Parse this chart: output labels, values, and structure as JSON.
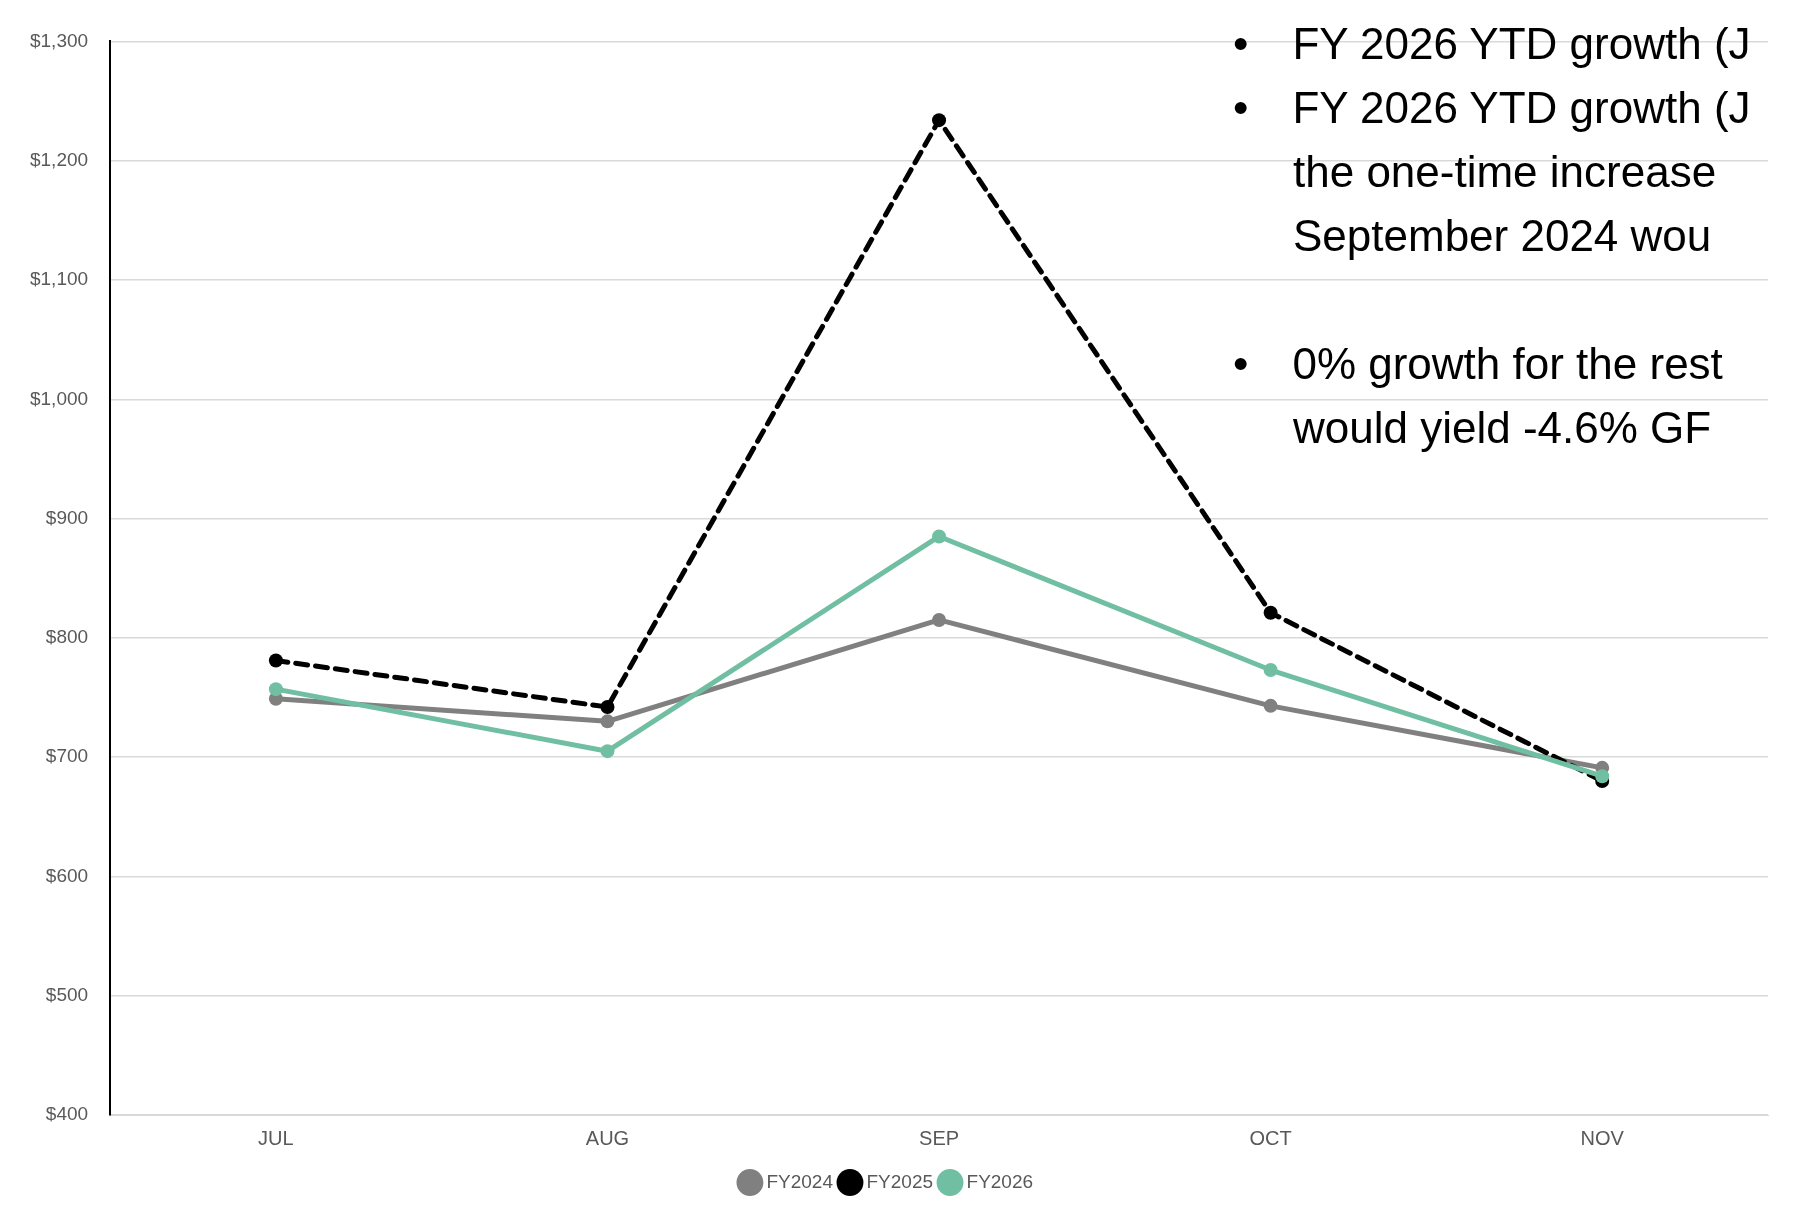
{
  "chart_data": {
    "type": "line",
    "categories": [
      "JUL",
      "AUG",
      "SEP",
      "OCT",
      "NOV"
    ],
    "series": [
      {
        "name": "FY2024",
        "color": "#808080",
        "values": [
          749,
          730,
          815,
          743,
          691
        ],
        "line_style": "solid"
      },
      {
        "name": "FY2025",
        "color": "#000000",
        "values": [
          781,
          742,
          1234,
          821,
          680
        ],
        "line_style": "dashed"
      },
      {
        "name": "FY2026",
        "color": "#70bfa3",
        "values": [
          757,
          705,
          885,
          773,
          684
        ],
        "line_style": "solid"
      }
    ],
    "ylim": [
      400,
      1300
    ],
    "yticks": [
      {
        "value": 400,
        "label": "$400"
      },
      {
        "value": 500,
        "label": "$500"
      },
      {
        "value": 600,
        "label": "$600"
      },
      {
        "value": 700,
        "label": "$700"
      },
      {
        "value": 800,
        "label": "$800"
      },
      {
        "value": 900,
        "label": "$900"
      },
      {
        "value": 1000,
        "label": "$1,000"
      },
      {
        "value": 1100,
        "label": "$1,100"
      },
      {
        "value": 1200,
        "label": "$1,200"
      },
      {
        "value": 1300,
        "label": "$1,300"
      }
    ],
    "grid": "y",
    "legend": "bottom",
    "marker": "circle",
    "annotations": [
      "• FY 2026 YTD growth (J",
      "• FY 2026 YTD growth (J\nthe one-time increase\nSeptember 2024 wou",
      "• 0% growth for the rest\nwould yield -4.6% GF"
    ]
  }
}
